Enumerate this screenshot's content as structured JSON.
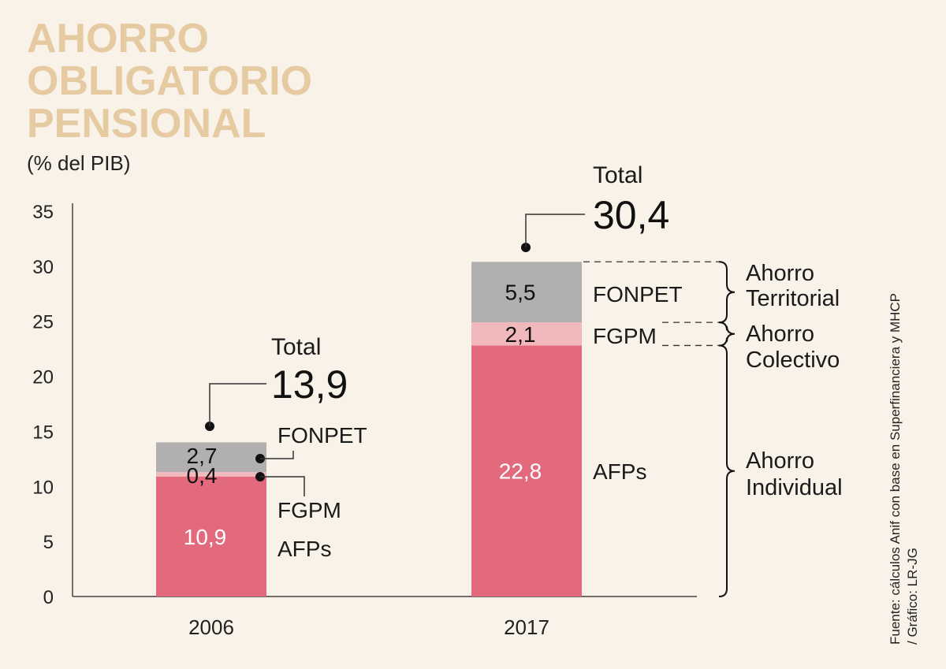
{
  "title_lines": [
    "AHORRO",
    "OBLIGATORIO",
    "PENSIONAL"
  ],
  "subtitle": "(% del PIB)",
  "source_lines": [
    "Fuente: cálculos Anif con base en Superfinanciera y MHCP",
    "/ Gráfico: LR-JG"
  ],
  "colors": {
    "background": "#f8f2e8",
    "title": "#e6cba2",
    "AFPs": "#e26a7c",
    "FGPM": "#f2b9bd",
    "FONPET": "#b1afb0"
  },
  "chart_data": {
    "type": "bar",
    "stacked": true,
    "categories": [
      "2006",
      "2017"
    ],
    "series": [
      {
        "name": "AFPs",
        "values": [
          10.9,
          22.8
        ],
        "labels": [
          "10,9",
          "22,8"
        ]
      },
      {
        "name": "FGPM",
        "values": [
          0.4,
          2.1
        ],
        "labels": [
          "0,4",
          "2,1"
        ]
      },
      {
        "name": "FONPET",
        "values": [
          2.7,
          5.5
        ],
        "labels": [
          "2,7",
          "5,5"
        ]
      }
    ],
    "totals": [
      13.9,
      30.4
    ],
    "total_labels": [
      "13,9",
      "30,4"
    ],
    "total_word": "Total",
    "ylim": [
      0,
      35
    ],
    "yticks": [
      0,
      5,
      10,
      15,
      20,
      25,
      30,
      35
    ],
    "groups": [
      {
        "label_lines": [
          "Ahorro",
          "Territorial"
        ],
        "series": "FONPET"
      },
      {
        "label_lines": [
          "Ahorro",
          "Colectivo"
        ],
        "series": "FGPM"
      },
      {
        "label_lines": [
          "Ahorro",
          "Individual"
        ],
        "series": "AFPs"
      }
    ],
    "legend": "direct-labels"
  }
}
